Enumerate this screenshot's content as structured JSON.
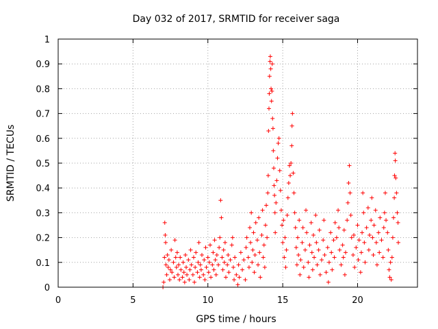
{
  "chart_data": {
    "type": "scatter",
    "title": "Day 032 of 2017, SRMTID for receiver saga",
    "xlabel": "GPS time / hours",
    "ylabel": "SRMTID / TECUs",
    "xlim": [
      0,
      24
    ],
    "ylim": [
      0,
      1
    ],
    "xticks": [
      0,
      5,
      10,
      15,
      20
    ],
    "xtick_labels": [
      "0",
      "5",
      "10",
      "15",
      "20"
    ],
    "yticks": [
      0,
      0.1,
      0.2,
      0.3,
      0.4,
      0.5,
      0.6,
      0.7,
      0.8,
      0.9,
      1
    ],
    "ytick_labels": [
      "0",
      "0.1",
      "0.2",
      "0.3",
      "0.4",
      "0.5",
      "0.6",
      "0.7",
      "0.8",
      "0.9",
      "1"
    ],
    "grid": true,
    "marker": "+",
    "color": "#ff0000",
    "series": [
      {
        "name": "SRMTID",
        "points": [
          [
            7.0,
            0.0
          ],
          [
            7.05,
            0.02
          ],
          [
            7.1,
            0.12
          ],
          [
            7.12,
            0.26
          ],
          [
            7.15,
            0.21
          ],
          [
            7.18,
            0.18
          ],
          [
            7.2,
            0.09
          ],
          [
            7.25,
            0.05
          ],
          [
            7.3,
            0.13
          ],
          [
            7.35,
            0.08
          ],
          [
            7.4,
            0.11
          ],
          [
            7.45,
            0.03
          ],
          [
            7.5,
            0.07
          ],
          [
            7.55,
            0.15
          ],
          [
            7.6,
            0.06
          ],
          [
            7.7,
            0.1
          ],
          [
            7.75,
            0.04
          ],
          [
            7.8,
            0.19
          ],
          [
            7.85,
            0.12
          ],
          [
            7.9,
            0.08
          ],
          [
            7.95,
            0.14
          ],
          [
            8.0,
            0.05
          ],
          [
            8.05,
            0.09
          ],
          [
            8.1,
            0.03
          ],
          [
            8.15,
            0.12
          ],
          [
            8.2,
            0.07
          ],
          [
            8.3,
            0.04
          ],
          [
            8.35,
            0.1
          ],
          [
            8.4,
            0.06
          ],
          [
            8.45,
            0.02
          ],
          [
            8.5,
            0.13
          ],
          [
            8.55,
            0.08
          ],
          [
            8.6,
            0.05
          ],
          [
            8.7,
            0.11
          ],
          [
            8.75,
            0.03
          ],
          [
            8.8,
            0.07
          ],
          [
            8.85,
            0.15
          ],
          [
            8.9,
            0.09
          ],
          [
            9.0,
            0.05
          ],
          [
            9.05,
            0.12
          ],
          [
            9.1,
            0.02
          ],
          [
            9.15,
            0.08
          ],
          [
            9.2,
            0.14
          ],
          [
            9.3,
            0.06
          ],
          [
            9.35,
            0.1
          ],
          [
            9.4,
            0.18
          ],
          [
            9.45,
            0.04
          ],
          [
            9.5,
            0.09
          ],
          [
            9.55,
            0.07
          ],
          [
            9.6,
            0.13
          ],
          [
            9.7,
            0.05
          ],
          [
            9.75,
            0.11
          ],
          [
            9.8,
            0.03
          ],
          [
            9.85,
            0.16
          ],
          [
            9.9,
            0.08
          ],
          [
            10.0,
            0.12
          ],
          [
            10.05,
            0.06
          ],
          [
            10.1,
            0.1
          ],
          [
            10.15,
            0.17
          ],
          [
            10.2,
            0.04
          ],
          [
            10.3,
            0.09
          ],
          [
            10.35,
            0.14
          ],
          [
            10.4,
            0.07
          ],
          [
            10.45,
            0.19
          ],
          [
            10.5,
            0.11
          ],
          [
            10.55,
            0.05
          ],
          [
            10.6,
            0.13
          ],
          [
            10.7,
            0.09
          ],
          [
            10.75,
            0.16
          ],
          [
            10.8,
            0.2
          ],
          [
            10.85,
            0.35
          ],
          [
            10.9,
            0.28
          ],
          [
            10.95,
            0.12
          ],
          [
            11.0,
            0.07
          ],
          [
            11.05,
            0.15
          ],
          [
            11.1,
            0.1
          ],
          [
            11.15,
            0.18
          ],
          [
            11.2,
            0.04
          ],
          [
            11.3,
            0.09
          ],
          [
            11.35,
            0.13
          ],
          [
            11.4,
            0.06
          ],
          [
            11.5,
            0.11
          ],
          [
            11.6,
            0.17
          ],
          [
            11.65,
            0.2
          ],
          [
            11.7,
            0.08
          ],
          [
            11.75,
            0.03
          ],
          [
            11.8,
            0.12
          ],
          [
            11.9,
            0.05
          ],
          [
            12.0,
            0.01
          ],
          [
            12.05,
            0.09
          ],
          [
            12.1,
            0.04
          ],
          [
            12.2,
            0.14
          ],
          [
            12.3,
            0.07
          ],
          [
            12.4,
            0.11
          ],
          [
            12.5,
            0.03
          ],
          [
            12.55,
            0.16
          ],
          [
            12.6,
            0.2
          ],
          [
            12.7,
            0.12
          ],
          [
            12.75,
            0.08
          ],
          [
            12.8,
            0.24
          ],
          [
            12.85,
            0.18
          ],
          [
            12.9,
            0.3
          ],
          [
            12.95,
            0.1
          ],
          [
            13.0,
            0.15
          ],
          [
            13.05,
            0.22
          ],
          [
            13.1,
            0.06
          ],
          [
            13.15,
            0.13
          ],
          [
            13.2,
            0.26
          ],
          [
            13.3,
            0.19
          ],
          [
            13.35,
            0.09
          ],
          [
            13.4,
            0.28
          ],
          [
            13.45,
            0.14
          ],
          [
            13.5,
            0.04
          ],
          [
            13.6,
            0.21
          ],
          [
            13.65,
            0.31
          ],
          [
            13.7,
            0.12
          ],
          [
            13.75,
            0.17
          ],
          [
            13.8,
            0.08
          ],
          [
            13.85,
            0.25
          ],
          [
            13.9,
            0.33
          ],
          [
            13.95,
            0.2
          ],
          [
            14.0,
            0.38
          ],
          [
            14.03,
            0.45
          ],
          [
            14.05,
            0.63
          ],
          [
            14.08,
            0.72
          ],
          [
            14.1,
            0.78
          ],
          [
            14.12,
            0.85
          ],
          [
            14.15,
            0.91
          ],
          [
            14.17,
            0.93
          ],
          [
            14.2,
            0.88
          ],
          [
            14.22,
            0.8
          ],
          [
            14.25,
            0.75
          ],
          [
            14.28,
            0.79
          ],
          [
            14.3,
            0.9
          ],
          [
            14.32,
            0.68
          ],
          [
            14.35,
            0.64
          ],
          [
            14.37,
            0.55
          ],
          [
            14.4,
            0.48
          ],
          [
            14.42,
            0.41
          ],
          [
            14.45,
            0.37
          ],
          [
            14.48,
            0.3
          ],
          [
            14.5,
            0.22
          ],
          [
            14.55,
            0.34
          ],
          [
            14.6,
            0.43
          ],
          [
            14.65,
            0.52
          ],
          [
            14.7,
            0.58
          ],
          [
            14.75,
            0.6
          ],
          [
            14.8,
            0.47
          ],
          [
            14.85,
            0.39
          ],
          [
            14.9,
            0.31
          ],
          [
            14.95,
            0.25
          ],
          [
            15.0,
            0.18
          ],
          [
            15.05,
            0.27
          ],
          [
            15.1,
            0.12
          ],
          [
            15.15,
            0.2
          ],
          [
            15.2,
            0.08
          ],
          [
            15.25,
            0.15
          ],
          [
            15.3,
            0.29
          ],
          [
            15.35,
            0.36
          ],
          [
            15.4,
            0.42
          ],
          [
            15.45,
            0.49
          ],
          [
            15.5,
            0.45
          ],
          [
            15.55,
            0.5
          ],
          [
            15.6,
            0.57
          ],
          [
            15.62,
            0.65
          ],
          [
            15.65,
            0.7
          ],
          [
            15.7,
            0.46
          ],
          [
            15.75,
            0.38
          ],
          [
            15.8,
            0.3
          ],
          [
            15.85,
            0.24
          ],
          [
            15.9,
            0.16
          ],
          [
            15.95,
            0.09
          ],
          [
            16.0,
            0.2
          ],
          [
            16.05,
            0.13
          ],
          [
            16.1,
            0.27
          ],
          [
            16.15,
            0.05
          ],
          [
            16.2,
            0.11
          ],
          [
            16.3,
            0.18
          ],
          [
            16.35,
            0.24
          ],
          [
            16.4,
            0.08
          ],
          [
            16.5,
            0.15
          ],
          [
            16.55,
            0.31
          ],
          [
            16.6,
            0.22
          ],
          [
            16.7,
            0.1
          ],
          [
            16.75,
            0.04
          ],
          [
            16.8,
            0.17
          ],
          [
            16.9,
            0.26
          ],
          [
            16.95,
            0.14
          ],
          [
            17.0,
            0.07
          ],
          [
            17.05,
            0.21
          ],
          [
            17.1,
            0.12
          ],
          [
            17.2,
            0.29
          ],
          [
            17.25,
            0.18
          ],
          [
            17.3,
            0.09
          ],
          [
            17.4,
            0.15
          ],
          [
            17.45,
            0.23
          ],
          [
            17.5,
            0.05
          ],
          [
            17.6,
            0.11
          ],
          [
            17.7,
            0.19
          ],
          [
            17.75,
            0.27
          ],
          [
            17.8,
            0.13
          ],
          [
            17.9,
            0.06
          ],
          [
            18.0,
            0.16
          ],
          [
            18.05,
            0.02
          ],
          [
            18.1,
            0.1
          ],
          [
            18.2,
            0.22
          ],
          [
            18.25,
            0.14
          ],
          [
            18.3,
            0.07
          ],
          [
            18.4,
            0.19
          ],
          [
            18.45,
            0.12
          ],
          [
            18.5,
            0.26
          ],
          [
            18.6,
            0.2
          ],
          [
            18.7,
            0.31
          ],
          [
            18.75,
            0.24
          ],
          [
            18.8,
            0.15
          ],
          [
            18.9,
            0.09
          ],
          [
            19.0,
            0.17
          ],
          [
            19.05,
            0.12
          ],
          [
            19.1,
            0.23
          ],
          [
            19.15,
            0.05
          ],
          [
            19.2,
            0.14
          ],
          [
            19.3,
            0.27
          ],
          [
            19.35,
            0.34
          ],
          [
            19.4,
            0.42
          ],
          [
            19.45,
            0.49
          ],
          [
            19.5,
            0.38
          ],
          [
            19.55,
            0.29
          ],
          [
            19.6,
            0.2
          ],
          [
            19.7,
            0.13
          ],
          [
            19.75,
            0.21
          ],
          [
            19.8,
            0.08
          ],
          [
            19.9,
            0.16
          ],
          [
            20.0,
            0.25
          ],
          [
            20.05,
            0.11
          ],
          [
            20.1,
            0.19
          ],
          [
            20.2,
            0.06
          ],
          [
            20.25,
            0.14
          ],
          [
            20.3,
            0.22
          ],
          [
            20.35,
            0.38
          ],
          [
            20.4,
            0.3
          ],
          [
            20.45,
            0.18
          ],
          [
            20.5,
            0.1
          ],
          [
            20.6,
            0.24
          ],
          [
            20.7,
            0.32
          ],
          [
            20.75,
            0.15
          ],
          [
            20.8,
            0.21
          ],
          [
            20.9,
            0.27
          ],
          [
            20.95,
            0.36
          ],
          [
            21.0,
            0.2
          ],
          [
            21.05,
            0.13
          ],
          [
            21.1,
            0.25
          ],
          [
            21.2,
            0.31
          ],
          [
            21.25,
            0.18
          ],
          [
            21.3,
            0.09
          ],
          [
            21.4,
            0.22
          ],
          [
            21.45,
            0.14
          ],
          [
            21.5,
            0.28
          ],
          [
            21.6,
            0.19
          ],
          [
            21.7,
            0.12
          ],
          [
            21.75,
            0.24
          ],
          [
            21.8,
            0.3
          ],
          [
            21.85,
            0.38
          ],
          [
            21.9,
            0.27
          ],
          [
            22.0,
            0.22
          ],
          [
            22.05,
            0.15
          ],
          [
            22.1,
            0.07
          ],
          [
            22.15,
            0.04
          ],
          [
            22.2,
            0.1
          ],
          [
            22.25,
            0.03
          ],
          [
            22.3,
            0.12
          ],
          [
            22.35,
            0.2
          ],
          [
            22.4,
            0.28
          ],
          [
            22.45,
            0.36
          ],
          [
            22.47,
            0.45
          ],
          [
            22.5,
            0.54
          ],
          [
            22.52,
            0.51
          ],
          [
            22.55,
            0.44
          ],
          [
            22.6,
            0.38
          ],
          [
            22.65,
            0.3
          ],
          [
            22.7,
            0.26
          ],
          [
            22.72,
            0.18
          ]
        ]
      }
    ]
  }
}
